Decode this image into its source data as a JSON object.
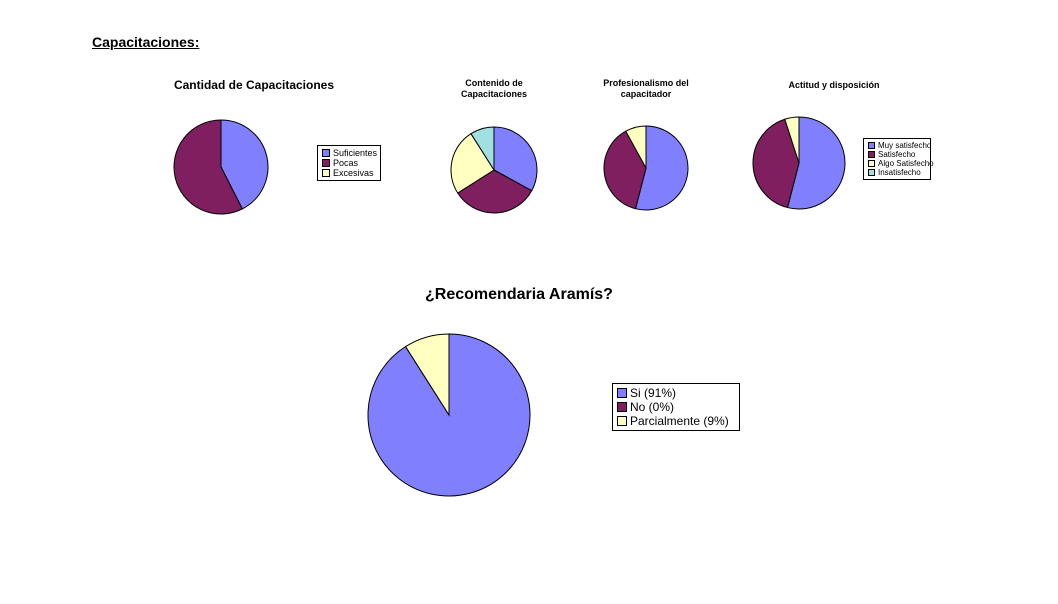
{
  "heading": "Capacitaciones:",
  "chart_data": [
    {
      "type": "pie",
      "title": "Cantidad de Capacitaciones",
      "categories": [
        "Suficientes",
        "Pocas",
        "Excesivas"
      ],
      "values": [
        42.5,
        57.5,
        0
      ],
      "colors": [
        "#8080ff",
        "#7f1f5f",
        "#ffffc0"
      ]
    },
    {
      "type": "pie",
      "title": "Contenido de Capacitaciones",
      "values": [
        33,
        33,
        25,
        9
      ],
      "colors": [
        "#8080ff",
        "#7f1f5f",
        "#ffffc0",
        "#a0e0e0"
      ]
    },
    {
      "type": "pie",
      "title": "Profesionalismo del capacitador",
      "values": [
        54,
        38,
        8
      ],
      "colors": [
        "#8080ff",
        "#7f1f5f",
        "#ffffc0"
      ]
    },
    {
      "type": "pie",
      "title": "Actitud y disposición",
      "categories": [
        "Muy satisfecho",
        "Satisfecho",
        "Algo Satisfecho",
        "Insatisfecho"
      ],
      "values": [
        54,
        41,
        5,
        0
      ],
      "colors": [
        "#8080ff",
        "#7f1f5f",
        "#ffffc0",
        "#a0e0e0"
      ]
    },
    {
      "type": "pie",
      "title": "¿Recomendaria Aramís?",
      "categories": [
        "Si (91%)",
        "No (0%)",
        "Parcialmente (9%)"
      ],
      "values": [
        91,
        0,
        9
      ],
      "colors": [
        "#8080ff",
        "#7f1f5f",
        "#ffffc0"
      ]
    }
  ]
}
